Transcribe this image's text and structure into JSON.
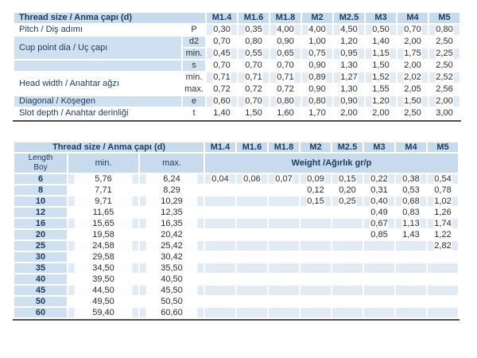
{
  "colors": {
    "header_blue": "#c8dbed",
    "label_blue": "#cfe0f0",
    "stripe_blue": "#e2eaf4",
    "header_text": "#1b3a5c",
    "body_text": "#2d2d2d",
    "bottom_rule": "#4f4f4f"
  },
  "table1": {
    "header_label": "Thread size / Anma çapı (d)",
    "col_headers": [
      "M1.4",
      "M1.6",
      "M1.8",
      "M2",
      "M2.5",
      "M3",
      "M4",
      "M5"
    ],
    "rows": [
      {
        "label": "Pitch / Diş adımı",
        "labelRows": 1,
        "labelBg": "white",
        "symbol": "P",
        "bg": "white",
        "striped": true,
        "values": [
          "0,30",
          "0,35",
          "4,00",
          "4,00",
          "4,50",
          "0,50",
          "0,70",
          "0,80"
        ]
      },
      {
        "label": "Cup point dia / Uç çapı",
        "labelRows": 2,
        "labelBg": "blue",
        "symbol": "d2",
        "bg": "blue",
        "striped": false,
        "values": [
          "0,70",
          "0,80",
          "0,90",
          "1,00",
          "1,20",
          "1,40",
          "2,00",
          "2,50"
        ]
      },
      {
        "label": null,
        "symbol": "min.",
        "bg": "blue",
        "striped": true,
        "values": [
          "0,45",
          "0,55",
          "0,65",
          "0,75",
          "0,95",
          "1,15",
          "1,75",
          "2,25"
        ]
      },
      {
        "label": "",
        "labelRows": 1,
        "labelBg": "blue",
        "symbol": "s",
        "bg": "blue",
        "striped": false,
        "values": [
          "0,70",
          "0,70",
          "0,70",
          "0,90",
          "1,30",
          "1,50",
          "2,00",
          "2,50"
        ]
      },
      {
        "label": "Head width / Anahtar ağzı",
        "labelRows": 2,
        "labelBg": "white",
        "symbol": "min.",
        "bg": "white",
        "striped": true,
        "values": [
          "0,71",
          "0,71",
          "0,71",
          "0,89",
          "1,27",
          "1,52",
          "2,02",
          "2,52"
        ]
      },
      {
        "label": null,
        "symbol": "max.",
        "bg": "white",
        "striped": false,
        "values": [
          "0,72",
          "0,72",
          "0,72",
          "0,90",
          "1,30",
          "1,55",
          "2,05",
          "2,56"
        ]
      },
      {
        "label": "Diagonal / Köşegen",
        "labelRows": 1,
        "labelBg": "blue",
        "symbol": "e",
        "bg": "blue",
        "striped": true,
        "values": [
          "0,60",
          "0,70",
          "0,80",
          "0,80",
          "0,90",
          "1,20",
          "1,50",
          "2,00"
        ]
      },
      {
        "label": "Slot depth / Anahtar derinliği",
        "labelRows": 1,
        "labelBg": "white",
        "symbol": "t",
        "bg": "white",
        "striped": false,
        "values": [
          "1,40",
          "1,50",
          "1,60",
          "1,70",
          "2,00",
          "2,00",
          "2,50",
          "3,00"
        ]
      }
    ]
  },
  "table2": {
    "header_label": "Thread size / Anma çapı (d)",
    "col_headers": [
      "M1.4",
      "M1.6",
      "M1.8",
      "M2",
      "M2.5",
      "M3",
      "M4",
      "M5"
    ],
    "length_label_line1": "Length",
    "length_label_line2": "Boy",
    "min_label": "min.",
    "max_label": "max.",
    "weight_label": "Weight /Ağırlık gr/p",
    "rows": [
      {
        "length": "6",
        "min": "5,76",
        "max": "6,24",
        "striped": true,
        "weights": [
          "0,04",
          "0,06",
          "0,07",
          "0,09",
          "0,15",
          "0,22",
          "0,38",
          "0,54"
        ]
      },
      {
        "length": "8",
        "min": "7,71",
        "max": "8,29",
        "striped": false,
        "weights": [
          "",
          "",
          "",
          "0,12",
          "0,20",
          "0,31",
          "0,53",
          "0,78"
        ]
      },
      {
        "length": "10",
        "min": "9,71",
        "max": "10,29",
        "striped": true,
        "weights": [
          "",
          "",
          "",
          "0,15",
          "0,25",
          "0,40",
          "0,68",
          "1,02"
        ]
      },
      {
        "length": "12",
        "min": "11,65",
        "max": "12,35",
        "striped": false,
        "weights": [
          "",
          "",
          "",
          "",
          "",
          "0,49",
          "0,83",
          "1,26"
        ]
      },
      {
        "length": "16",
        "min": "15,65",
        "max": "16,35",
        "striped": true,
        "weights": [
          "",
          "",
          "",
          "",
          "",
          "0,67",
          "1,13",
          "1,74"
        ]
      },
      {
        "length": "20",
        "min": "19,58",
        "max": "20,42",
        "striped": false,
        "weights": [
          "",
          "",
          "",
          "",
          "",
          "0,85",
          "1,43",
          "1,22"
        ]
      },
      {
        "length": "25",
        "min": "24,58",
        "max": "25,42",
        "striped": true,
        "weights": [
          "",
          "",
          "",
          "",
          "",
          "",
          "",
          "2,82"
        ]
      },
      {
        "length": "30",
        "min": "29,58",
        "max": "30,42",
        "striped": false,
        "weights": [
          "",
          "",
          "",
          "",
          "",
          "",
          "",
          ""
        ]
      },
      {
        "length": "35",
        "min": "34,50",
        "max": "35,50",
        "striped": true,
        "weights": [
          "",
          "",
          "",
          "",
          "",
          "",
          "",
          ""
        ]
      },
      {
        "length": "40",
        "min": "39,50",
        "max": "40,50",
        "striped": false,
        "weights": [
          "",
          "",
          "",
          "",
          "",
          "",
          "",
          ""
        ]
      },
      {
        "length": "45",
        "min": "44,50",
        "max": "45,50",
        "striped": true,
        "weights": [
          "",
          "",
          "",
          "",
          "",
          "",
          "",
          ""
        ]
      },
      {
        "length": "50",
        "min": "49,50",
        "max": "50,50",
        "striped": false,
        "weights": [
          "",
          "",
          "",
          "",
          "",
          "",
          "",
          ""
        ]
      },
      {
        "length": "60",
        "min": "59,40",
        "max": "60,60",
        "striped": true,
        "weights": [
          "",
          "",
          "",
          "",
          "",
          "",
          "",
          ""
        ]
      }
    ]
  }
}
